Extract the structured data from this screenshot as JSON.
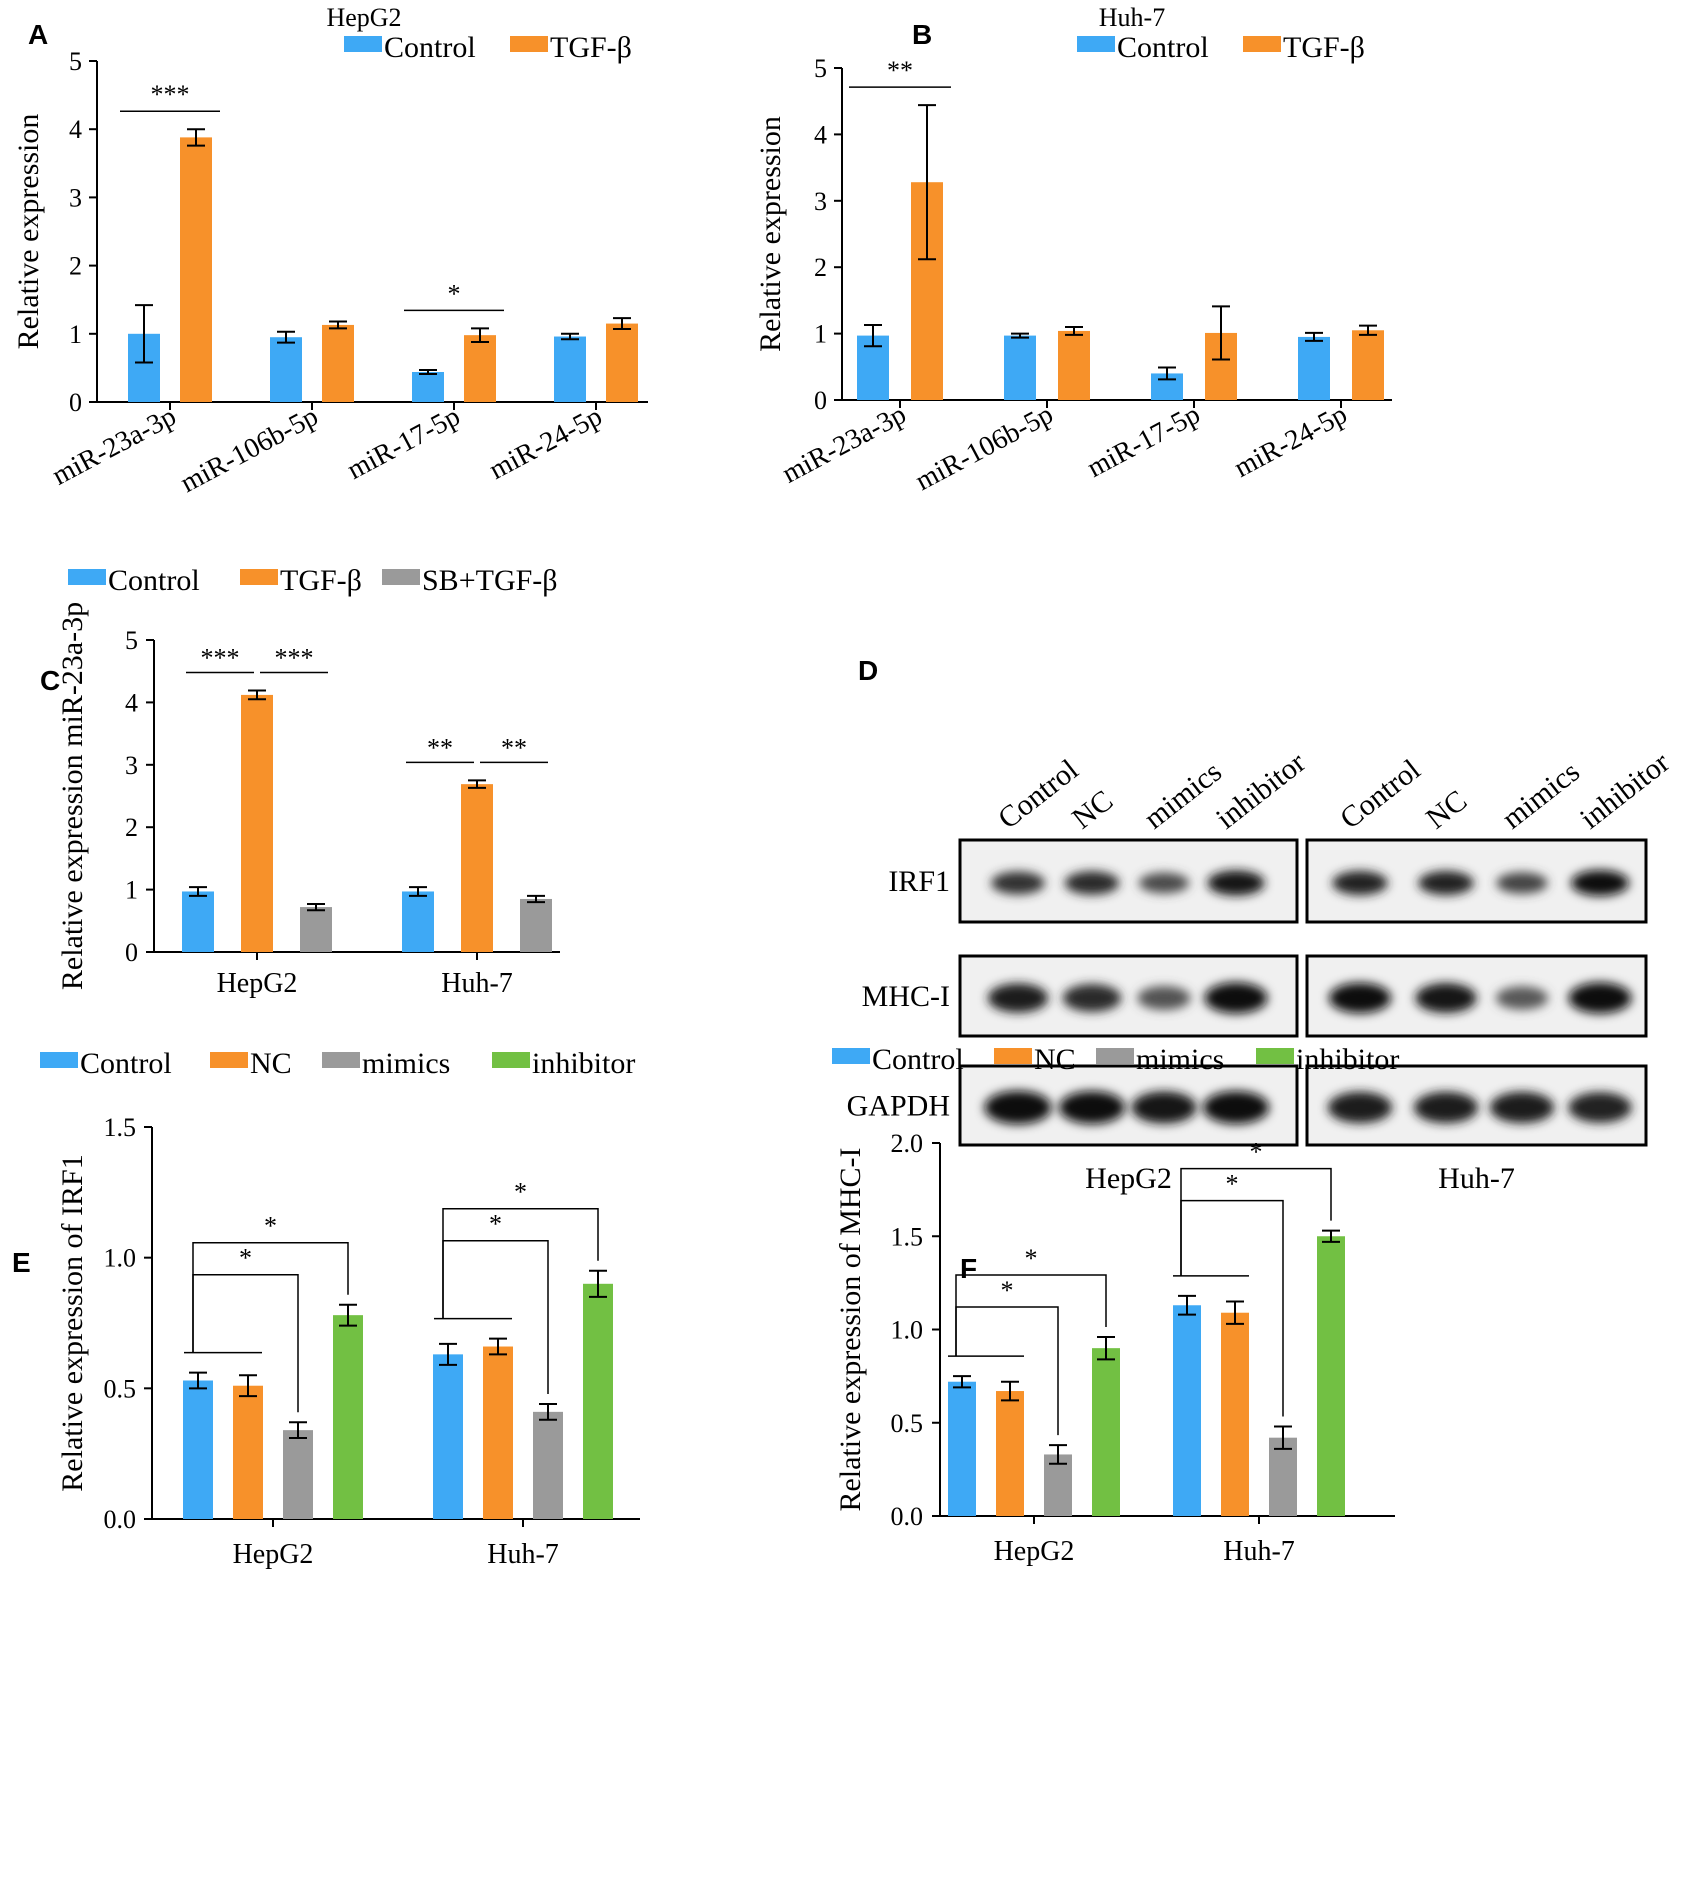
{
  "colors": {
    "Control": "#3ea9f5",
    "TGF-β": "#f7912a",
    "SB+TGF-β": "#9a9a9a",
    "NC": "#f7912a",
    "mimics": "#9a9a9a",
    "inhibitor": "#72c043"
  },
  "chart_data": [
    {
      "panel": "A",
      "type": "bar",
      "title": "HepG2",
      "ylabel": "Relative expression",
      "ylim": [
        0,
        5
      ],
      "yticks": [
        "0",
        "1",
        "2",
        "3",
        "4",
        "5"
      ],
      "categories": [
        "miR-23a-3p",
        "miR-106b-5p",
        "miR-17-5p",
        "miR-24-5p"
      ],
      "series": [
        {
          "name": "Control",
          "values": [
            1.0,
            0.95,
            0.44,
            0.96
          ],
          "errors": [
            0.42,
            0.08,
            0.03,
            0.04
          ]
        },
        {
          "name": "TGF-β",
          "values": [
            3.88,
            1.13,
            0.98,
            1.15
          ],
          "errors": [
            0.12,
            0.05,
            0.1,
            0.08
          ]
        }
      ],
      "significance": [
        {
          "category": 0,
          "label": "***"
        },
        {
          "category": 2,
          "label": "*"
        }
      ]
    },
    {
      "panel": "B",
      "type": "bar",
      "title": "Huh-7",
      "ylabel": "Relative expression",
      "ylim": [
        0,
        5
      ],
      "yticks": [
        "0",
        "1",
        "2",
        "3",
        "4",
        "5"
      ],
      "categories": [
        "miR-23a-3p",
        "miR-106b-5p",
        "miR-17-5p",
        "miR-24-5p"
      ],
      "series": [
        {
          "name": "Control",
          "values": [
            0.97,
            0.97,
            0.4,
            0.95
          ],
          "errors": [
            0.16,
            0.03,
            0.09,
            0.06
          ]
        },
        {
          "name": "TGF-β",
          "values": [
            3.28,
            1.04,
            1.01,
            1.05
          ],
          "errors": [
            1.16,
            0.06,
            0.4,
            0.07
          ]
        }
      ],
      "significance": [
        {
          "category": 0,
          "label": "**"
        }
      ]
    },
    {
      "panel": "C",
      "type": "bar",
      "title": "",
      "ylabel": "Relative expression miR-23a-3p",
      "ylim": [
        0,
        5
      ],
      "yticks": [
        "0",
        "1",
        "2",
        "3",
        "4",
        "5"
      ],
      "categories": [
        "HepG2",
        "Huh-7"
      ],
      "series": [
        {
          "name": "Control",
          "values": [
            0.97,
            0.97
          ],
          "errors": [
            0.07,
            0.07
          ]
        },
        {
          "name": "TGF-β",
          "values": [
            4.12,
            2.69
          ],
          "errors": [
            0.07,
            0.06
          ]
        },
        {
          "name": "SB+TGF-β",
          "values": [
            0.72,
            0.85
          ],
          "errors": [
            0.05,
            0.05
          ]
        }
      ],
      "significance": [
        {
          "category": 0,
          "from": 0,
          "to": 1,
          "label": "***"
        },
        {
          "category": 0,
          "from": 1,
          "to": 2,
          "label": "***"
        },
        {
          "category": 1,
          "from": 0,
          "to": 1,
          "label": "**"
        },
        {
          "category": 1,
          "from": 1,
          "to": 2,
          "label": "**"
        }
      ]
    },
    {
      "panel": "E",
      "type": "bar",
      "title": "",
      "ylabel": "Relative expression of IRF1",
      "ylim": [
        0,
        1.5
      ],
      "yticks": [
        "0.0",
        "0.5",
        "1.0",
        "1.5"
      ],
      "categories": [
        "HepG2",
        "Huh-7"
      ],
      "series": [
        {
          "name": "Control",
          "values": [
            0.53,
            0.63
          ],
          "errors": [
            0.03,
            0.04
          ]
        },
        {
          "name": "NC",
          "values": [
            0.51,
            0.66
          ],
          "errors": [
            0.04,
            0.03
          ]
        },
        {
          "name": "mimics",
          "values": [
            0.34,
            0.41
          ],
          "errors": [
            0.03,
            0.03
          ]
        },
        {
          "name": "inhibitor",
          "values": [
            0.78,
            0.9
          ],
          "errors": [
            0.04,
            0.05
          ]
        }
      ],
      "significance": [
        {
          "category": 0,
          "to": 2,
          "label": "*"
        },
        {
          "category": 0,
          "to": 3,
          "label": "*"
        },
        {
          "category": 1,
          "to": 2,
          "label": "*"
        },
        {
          "category": 1,
          "to": 3,
          "label": "*"
        }
      ]
    },
    {
      "panel": "F",
      "type": "bar",
      "title": "",
      "ylabel": "Relative expression of MHC-I",
      "ylim": [
        0,
        2.0
      ],
      "yticks": [
        "0.0",
        "0.5",
        "1.0",
        "1.5",
        "2.0"
      ],
      "categories": [
        "HepG2",
        "Huh-7"
      ],
      "series": [
        {
          "name": "Control",
          "values": [
            0.72,
            1.13
          ],
          "errors": [
            0.03,
            0.05
          ]
        },
        {
          "name": "NC",
          "values": [
            0.67,
            1.09
          ],
          "errors": [
            0.05,
            0.06
          ]
        },
        {
          "name": "mimics",
          "values": [
            0.33,
            0.42
          ],
          "errors": [
            0.05,
            0.06
          ]
        },
        {
          "name": "inhibitor",
          "values": [
            0.9,
            1.5
          ],
          "errors": [
            0.06,
            0.03
          ]
        }
      ],
      "significance": [
        {
          "category": 0,
          "to": 2,
          "label": "*"
        },
        {
          "category": 0,
          "to": 3,
          "label": "*"
        },
        {
          "category": 1,
          "to": 2,
          "label": "*"
        },
        {
          "category": 1,
          "to": 3,
          "label": "*"
        }
      ]
    }
  ],
  "panel_d": {
    "panel": "D",
    "lanes": [
      "Control",
      "NC",
      "mimics",
      "inhibitor"
    ],
    "proteins": [
      "IRF1",
      "MHC-I",
      "GAPDH"
    ],
    "cell_lines": [
      "HepG2",
      "Huh-7"
    ],
    "band_intensity": {
      "HepG2": {
        "IRF1": [
          0.7,
          0.75,
          0.5,
          0.9
        ],
        "MHC-I": [
          0.85,
          0.75,
          0.45,
          1.0
        ],
        "GAPDH": [
          1.0,
          0.95,
          0.9,
          0.95
        ]
      },
      "Huh-7": {
        "IRF1": [
          0.8,
          0.8,
          0.55,
          0.95
        ],
        "MHC-I": [
          0.95,
          0.9,
          0.4,
          1.0
        ],
        "GAPDH": [
          0.85,
          0.85,
          0.85,
          0.8
        ]
      }
    }
  }
}
